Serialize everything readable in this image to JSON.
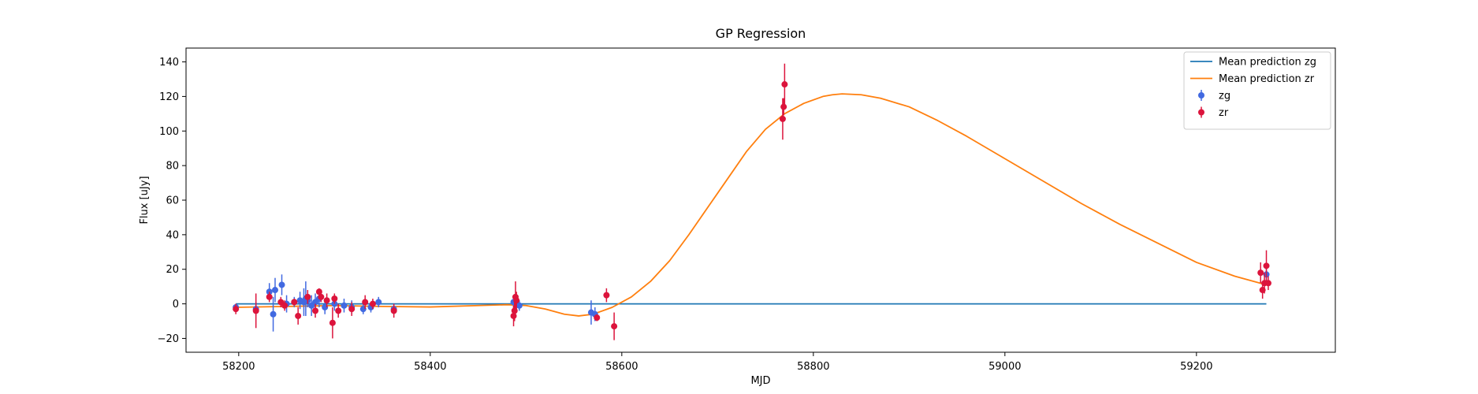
{
  "chart_data": {
    "type": "scatter",
    "title": "GP Regression",
    "xlabel": "MJD",
    "ylabel": "Flux [uJy]",
    "xlim": [
      58145,
      59345
    ],
    "ylim": [
      -28,
      148
    ],
    "xticks": [
      58200,
      58400,
      58600,
      58800,
      59000,
      59200
    ],
    "yticks": [
      -20,
      0,
      20,
      40,
      60,
      80,
      100,
      120,
      140
    ],
    "grid": false,
    "legend_position": "upper-right",
    "colors": {
      "zg": "#4169E1",
      "zr": "#DC143C",
      "mean_zg": "#1f77b4",
      "mean_zr": "#ff7f0e"
    },
    "series": [
      {
        "name": "Mean prediction zg",
        "kind": "line",
        "x": [
          58197,
          58300,
          58400,
          58500,
          58600,
          58700,
          58800,
          58900,
          59000,
          59100,
          59200,
          59273
        ],
        "y": [
          0,
          0,
          0,
          0,
          0,
          0,
          0,
          0,
          0,
          0,
          0,
          0
        ]
      },
      {
        "name": "Mean prediction zr",
        "kind": "line",
        "x": [
          58197,
          58250,
          58300,
          58350,
          58400,
          58450,
          58480,
          58500,
          58520,
          58540,
          58555,
          58570,
          58590,
          58610,
          58630,
          58650,
          58670,
          58690,
          58710,
          58730,
          58750,
          58770,
          58790,
          58810,
          58820,
          58830,
          58850,
          58870,
          58900,
          58930,
          58960,
          59000,
          59040,
          59080,
          59120,
          59160,
          59200,
          59240,
          59273
        ],
        "y": [
          -2,
          -1.5,
          -1,
          -1.5,
          -1.8,
          -1,
          -0.5,
          -1,
          -3,
          -6,
          -7,
          -6,
          -2,
          4,
          13,
          25,
          40,
          56,
          72,
          88,
          101,
          110,
          116,
          120,
          121,
          121.5,
          121,
          119,
          114,
          106,
          97,
          84,
          71,
          58,
          46,
          35,
          24,
          16,
          11
        ]
      },
      {
        "name": "zg",
        "kind": "errorbar",
        "x": [
          58197,
          58218,
          58232,
          58236,
          58238,
          58245,
          58250,
          58258,
          58264,
          58270,
          58276,
          58280,
          58284,
          58290,
          58300,
          58310,
          58318,
          58330,
          58338,
          58346,
          58362,
          58487,
          58493,
          58568,
          58572,
          58268,
          58272,
          59273
        ],
        "y": [
          -2,
          -3,
          7,
          -6,
          8,
          11,
          0,
          1,
          2,
          3,
          -1,
          1,
          3,
          -2,
          0,
          -1,
          -2,
          -3,
          -2,
          1,
          -3,
          1,
          -1,
          -5,
          -6,
          1,
          2,
          17
        ],
        "yerr": [
          2,
          4,
          5,
          10,
          7,
          6,
          5,
          3,
          5,
          10,
          6,
          5,
          5,
          4,
          4,
          4,
          4,
          3,
          3,
          3,
          3,
          4,
          3,
          7,
          4,
          8,
          4,
          5
        ]
      },
      {
        "name": "zr",
        "kind": "errorbar",
        "x": [
          58197,
          58218,
          58232,
          58244,
          58248,
          58258,
          58262,
          58272,
          58280,
          58284,
          58286,
          58292,
          58298,
          58300,
          58304,
          58318,
          58332,
          58340,
          58362,
          58487,
          58488,
          58489,
          58490,
          58574,
          58584,
          58592,
          58768,
          58769,
          58770,
          59267,
          59269,
          59271,
          59273,
          59275
        ],
        "y": [
          -3,
          -4,
          4,
          1,
          -1,
          1,
          -7,
          4,
          -4,
          7,
          4,
          2,
          -11,
          3,
          -4,
          -3,
          1,
          0,
          -4,
          -7,
          -4,
          4,
          2,
          -8,
          5,
          -13,
          107,
          114,
          127,
          18,
          8,
          12,
          22,
          12
        ],
        "yerr": [
          3,
          10,
          3,
          3,
          3,
          2,
          5,
          4,
          4,
          2,
          3,
          4,
          9,
          3,
          4,
          4,
          4,
          3,
          4,
          6,
          6,
          9,
          5,
          2,
          4,
          8,
          12,
          5,
          12,
          6,
          5,
          6,
          9,
          4
        ]
      }
    ]
  }
}
